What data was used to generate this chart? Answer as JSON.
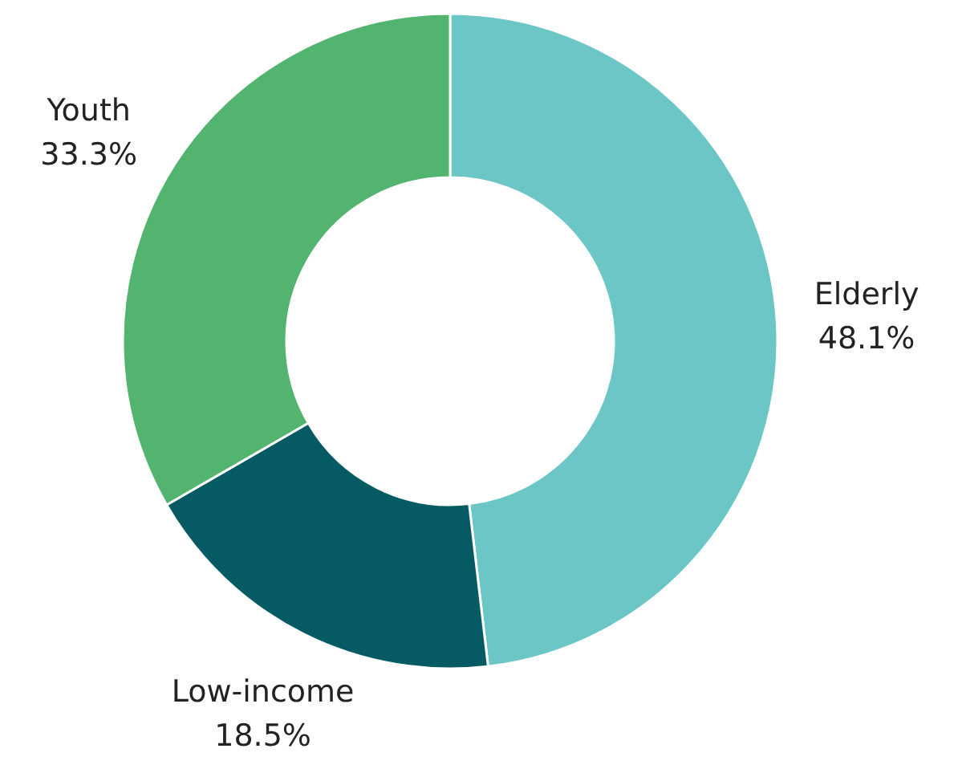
{
  "chart_data": {
    "type": "donut",
    "categories": [
      "Elderly",
      "Low-income",
      "Youth"
    ],
    "values": [
      48.1,
      18.5,
      33.3
    ],
    "colors": [
      "#6cc6c6",
      "#055a64",
      "#52b46e"
    ],
    "value_labels": [
      "48.1%",
      "18.5%",
      "33.3%"
    ]
  }
}
